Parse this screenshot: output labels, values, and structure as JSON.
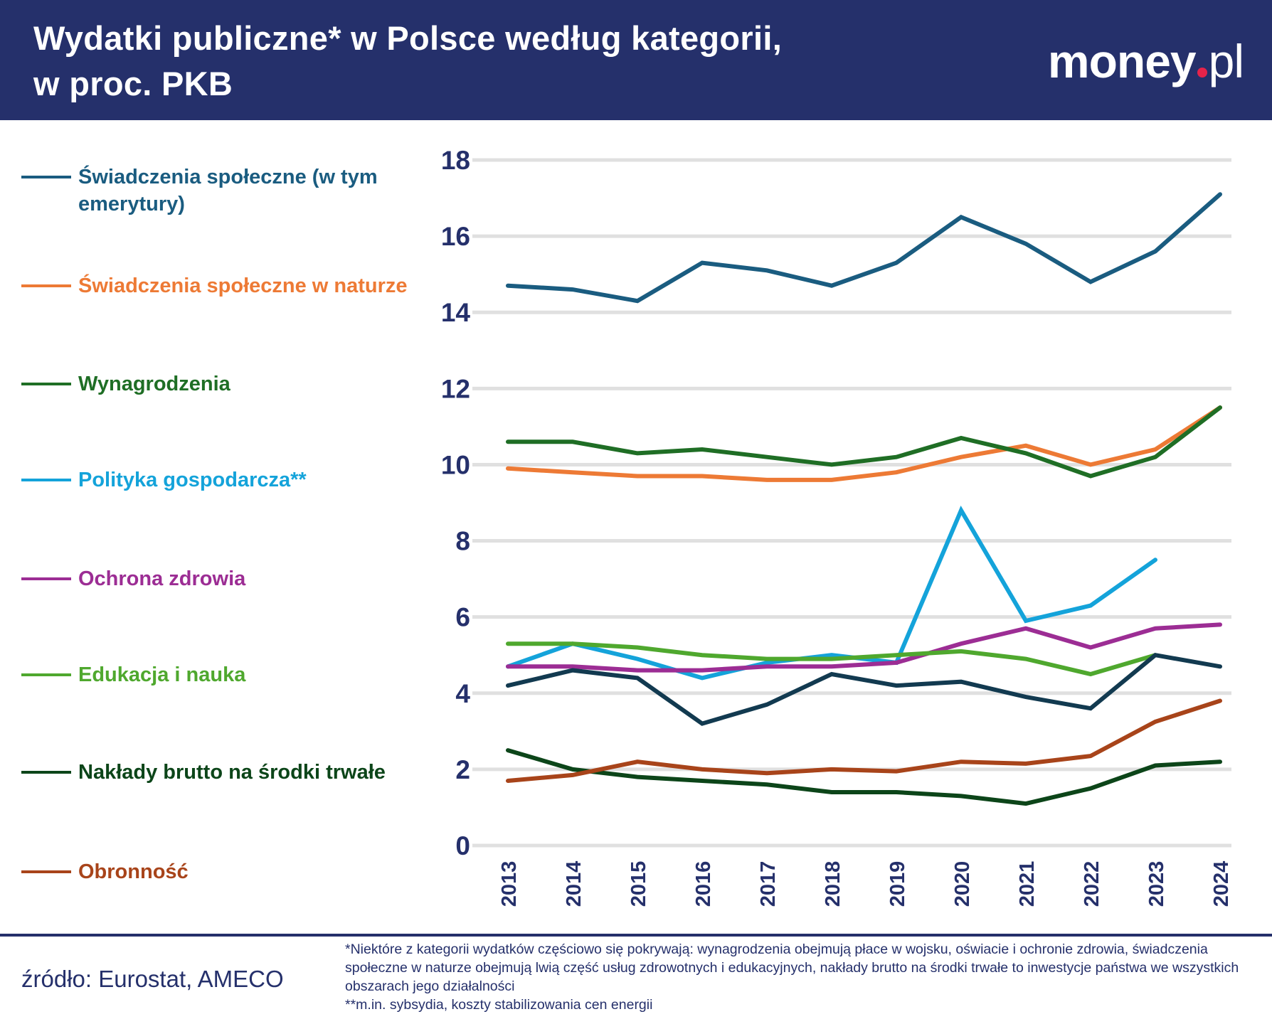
{
  "header": {
    "title_line1": "Wydatki publiczne* w Polsce według kategorii,",
    "title_line2": "w proc. PKB",
    "logo": "money.pl"
  },
  "colors": {
    "header_bg": "#25306b",
    "logo_dot": "#e6234a",
    "axis_text": "#25306b",
    "grid": "#e0e0e0"
  },
  "chart_data": {
    "type": "line",
    "title": "Wydatki publiczne* w Polsce według kategorii, w proc. PKB",
    "x": [
      "2013",
      "2014",
      "2015",
      "2016",
      "2017",
      "2018",
      "2019",
      "2020",
      "2021",
      "2022",
      "2023",
      "2024"
    ],
    "ylim": [
      0,
      18
    ],
    "yticks": [
      "0",
      "2",
      "4",
      "6",
      "8",
      "10",
      "12",
      "14",
      "16",
      "18"
    ],
    "grid": true,
    "legend_placement": "left",
    "series": [
      {
        "name": "Świadczenia społeczne (w tym emerytury)",
        "color": "#1a5c80",
        "values": [
          14.7,
          14.6,
          14.3,
          15.3,
          15.1,
          14.7,
          15.3,
          16.5,
          15.8,
          14.8,
          15.6,
          17.1
        ]
      },
      {
        "name": "Świadczenia społeczne w naturze",
        "color": "#ed7a35",
        "values": [
          9.9,
          9.8,
          9.7,
          9.7,
          9.6,
          9.6,
          9.8,
          10.2,
          10.5,
          10.0,
          10.4,
          11.5
        ]
      },
      {
        "name": "Wynagrodzenia",
        "color": "#1f6e25",
        "values": [
          10.6,
          10.6,
          10.3,
          10.4,
          10.2,
          10.0,
          10.2,
          10.7,
          10.3,
          9.7,
          10.2,
          11.5
        ]
      },
      {
        "name": "Polityka gospodarcza**",
        "color": "#14a3da",
        "values": [
          4.7,
          5.3,
          4.9,
          4.4,
          4.8,
          5.0,
          4.8,
          8.8,
          5.9,
          6.3,
          7.5,
          null
        ]
      },
      {
        "name": "Ochrona zdrowia",
        "color": "#9c2d94",
        "values": [
          4.7,
          4.7,
          4.6,
          4.6,
          4.7,
          4.7,
          4.8,
          5.3,
          5.7,
          5.2,
          5.7,
          5.8
        ]
      },
      {
        "name": "Edukacja i nauka",
        "color": "#4fa82e",
        "values": [
          5.3,
          5.3,
          5.2,
          5.0,
          4.9,
          4.9,
          5.0,
          5.1,
          4.9,
          4.5,
          5.0,
          null
        ]
      },
      {
        "color": "#123a50",
        "values": [
          4.2,
          4.6,
          4.4,
          3.2,
          3.7,
          4.5,
          4.2,
          4.3,
          3.9,
          3.6,
          5.0,
          4.7
        ]
      },
      {
        "name": "Nakłady brutto na środki trwałe",
        "color": "#0c4519",
        "values": [
          2.5,
          2.0,
          1.8,
          1.7,
          1.6,
          1.4,
          1.4,
          1.3,
          1.1,
          1.5,
          2.1,
          2.2
        ]
      },
      {
        "name": "Obronność",
        "color": "#a8441a",
        "values": [
          1.7,
          1.85,
          2.2,
          2.0,
          1.9,
          2.0,
          1.95,
          2.2,
          2.15,
          2.35,
          3.25,
          3.8
        ]
      }
    ]
  },
  "legend": [
    {
      "label": "Świadczenia społeczne (w tym emerytury)",
      "color": "#1a5c80"
    },
    {
      "label": "Świadczenia społeczne w naturze",
      "color": "#ed7a35"
    },
    {
      "label": "Wynagrodzenia",
      "color": "#1f6e25"
    },
    {
      "label": "Polityka gospodarcza**",
      "color": "#14a3da"
    },
    {
      "label": "Ochrona zdrowia",
      "color": "#9c2d94"
    },
    {
      "label": "Edukacja i nauka",
      "color": "#4fa82e"
    },
    {
      "label": "Nakłady brutto na środki trwałe",
      "color": "#0c4519"
    },
    {
      "label": "Obronność",
      "color": "#a8441a"
    }
  ],
  "footer": {
    "source": "źródło: Eurostat, AMECO",
    "note1": "*Niektóre z kategorii wydatków częściowo się pokrywają: wynagrodzenia obejmują płace w wojsku, oświacie i ochronie zdrowia, świadczenia społeczne w naturze obejmują lwią część usług zdrowotnych i edukacyjnych, nakłady brutto na środki trwałe to inwestycje państwa we wszystkich obszarach jego działalności",
    "note2": "**m.in. sybsydia, koszty stabilizowania cen energii"
  }
}
